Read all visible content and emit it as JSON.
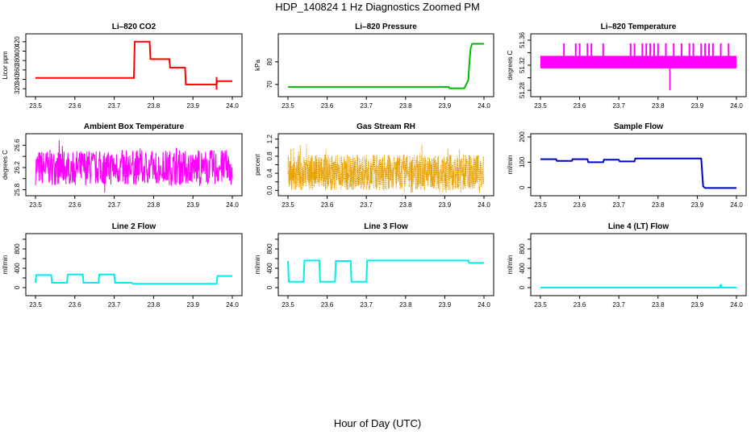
{
  "figure": {
    "title": "HDP_140824  1 Hz Diagnostics Zoomed PM",
    "xlabel": "Hour of Day (UTC)"
  },
  "chart_data": [
    {
      "type": "line",
      "title": "Li–820 CO2",
      "ylabel": "Licor ppm",
      "color": "#ff0000",
      "xlim": [
        23.5,
        24.0
      ],
      "ylim": [
        310,
        430
      ],
      "xticks": [
        "23.5",
        "23.6",
        "23.7",
        "23.8",
        "23.9",
        "24.0"
      ],
      "yticks": [
        320,
        340,
        360,
        380,
        400,
        420
      ],
      "series": [
        {
          "segments": [
            [
              23.5,
              343
            ],
            [
              23.75,
              343
            ],
            [
              23.752,
              420
            ],
            [
              23.79,
              420
            ],
            [
              23.792,
              383
            ],
            [
              23.84,
              383
            ],
            [
              23.842,
              365
            ],
            [
              23.88,
              365
            ],
            [
              23.882,
              329
            ],
            [
              23.96,
              329
            ],
            [
              23.962,
              336
            ],
            [
              24.0,
              336
            ]
          ]
        }
      ],
      "spikes": [
        [
          23.96,
          318,
          345
        ]
      ]
    },
    {
      "type": "line",
      "title": "Li–820 Pressure",
      "ylabel": "kPa",
      "color": "#00bb00",
      "xlim": [
        23.5,
        24.0
      ],
      "ylim": [
        66,
        91
      ],
      "xticks": [
        "23.5",
        "23.6",
        "23.7",
        "23.8",
        "23.9",
        "24.0"
      ],
      "yticks": [
        70,
        80
      ],
      "series": [
        {
          "segments": [
            [
              23.5,
              68.9
            ],
            [
              23.91,
              68.9
            ],
            [
              23.912,
              68.3
            ],
            [
              23.95,
              68.3
            ],
            [
              23.96,
              72
            ],
            [
              23.963,
              80
            ],
            [
              23.966,
              86
            ],
            [
              23.97,
              88
            ],
            [
              24.0,
              88
            ]
          ]
        }
      ]
    },
    {
      "type": "area",
      "title": "Li–820 Temperature",
      "ylabel": "degrees C",
      "color": "#ff00ff",
      "xlim": [
        23.5,
        24.0
      ],
      "ylim": [
        51.275,
        51.365
      ],
      "xticks": [
        "23.5",
        "23.6",
        "23.7",
        "23.8",
        "23.9",
        "24.0"
      ],
      "yticks": [
        "51.28",
        "51.32",
        "51.36"
      ],
      "yticks_minor": [
        "51.30",
        "51.34"
      ],
      "band": [
        51.315,
        51.335
      ],
      "spikes_up": [
        23.56,
        23.59,
        23.6,
        23.62,
        23.63,
        23.66,
        23.73,
        23.74,
        23.76,
        23.77,
        23.78,
        23.79,
        23.8,
        23.82,
        23.84,
        23.86,
        23.88,
        23.89,
        23.91,
        23.92,
        23.93,
        23.94,
        23.96,
        23.98
      ],
      "spike_top": 51.355,
      "spikes_down": [
        23.83
      ],
      "spike_bottom": 51.28
    },
    {
      "type": "line",
      "title": "Ambient Box Temperature",
      "ylabel": "degrees C",
      "color": "#ff00ff",
      "xlim": [
        23.5,
        24.0
      ],
      "ylim": [
        25.75,
        26.75
      ],
      "xticks": [
        "23.5",
        "23.6",
        "23.7",
        "23.8",
        "23.9",
        "24.0"
      ],
      "yticks": [
        "25.8",
        "26.2",
        "26.6"
      ],
      "yticks_minor": [
        "26.0",
        "26.4"
      ],
      "noise": {
        "center": 26.2,
        "amplitude": 0.32,
        "samples": 600
      }
    },
    {
      "type": "scatter",
      "title": "Gas Stream RH",
      "ylabel": "percent",
      "color": "#e8a000",
      "xlim": [
        23.5,
        24.0
      ],
      "ylim": [
        -0.05,
        1.25
      ],
      "xticks": [
        "23.5",
        "23.6",
        "23.7",
        "23.8",
        "23.9",
        "24.0"
      ],
      "yticks": [
        "0.0",
        "0.4",
        "0.8",
        "1.2"
      ],
      "yticks_minor": [
        "0.2",
        "0.6",
        "1.0"
      ],
      "noise": {
        "center": 0.42,
        "amplitude": 0.42,
        "samples": 1200
      }
    },
    {
      "type": "line",
      "title": "Sample Flow",
      "ylabel": "ml/min",
      "color": "#0000cc",
      "xlim": [
        23.5,
        24.0
      ],
      "ylim": [
        -20,
        200
      ],
      "xticks": [
        "23.5",
        "23.6",
        "23.7",
        "23.8",
        "23.9",
        "24.0"
      ],
      "yticks": [
        0,
        100,
        200
      ],
      "series": [
        {
          "segments": [
            [
              23.5,
              112
            ],
            [
              23.54,
              112
            ],
            [
              23.542,
              105
            ],
            [
              23.58,
              105
            ],
            [
              23.582,
              112
            ],
            [
              23.62,
              112
            ],
            [
              23.622,
              100
            ],
            [
              23.66,
              100
            ],
            [
              23.662,
              110
            ],
            [
              23.7,
              110
            ],
            [
              23.702,
              103
            ],
            [
              23.74,
              103
            ],
            [
              23.742,
              115
            ],
            [
              23.91,
              115
            ],
            [
              23.915,
              5
            ],
            [
              23.92,
              -2
            ],
            [
              24.0,
              -2
            ]
          ]
        }
      ]
    },
    {
      "type": "line",
      "title": "Line 2 Flow",
      "ylabel": "ml/min",
      "color": "#00eeee",
      "xlim": [
        23.5,
        24.0
      ],
      "ylim": [
        -100,
        1050
      ],
      "xticks": [
        "23.5",
        "23.6",
        "23.7",
        "23.8",
        "23.9",
        "24.0"
      ],
      "yticks": [
        0,
        400,
        800
      ],
      "yticks_minor": [
        200,
        600,
        1000
      ],
      "series": [
        {
          "segments": [
            [
              23.5,
              100
            ],
            [
              23.502,
              260
            ],
            [
              23.54,
              260
            ],
            [
              23.542,
              100
            ],
            [
              23.58,
              100
            ],
            [
              23.582,
              270
            ],
            [
              23.62,
              270
            ],
            [
              23.622,
              100
            ],
            [
              23.66,
              100
            ],
            [
              23.662,
              270
            ],
            [
              23.7,
              270
            ],
            [
              23.702,
              100
            ],
            [
              23.745,
              100
            ],
            [
              23.747,
              80
            ],
            [
              23.96,
              80
            ],
            [
              23.962,
              240
            ],
            [
              24.0,
              240
            ]
          ]
        }
      ]
    },
    {
      "type": "line",
      "title": "Line 3 Flow",
      "ylabel": "ml/min",
      "color": "#00eeee",
      "xlim": [
        23.5,
        24.0
      ],
      "ylim": [
        -100,
        1050
      ],
      "xticks": [
        "23.5",
        "23.6",
        "23.7",
        "23.8",
        "23.9",
        "24.0"
      ],
      "yticks": [
        0,
        400,
        800
      ],
      "yticks_minor": [
        200,
        600,
        1000
      ],
      "series": [
        {
          "segments": [
            [
              23.5,
              550
            ],
            [
              23.502,
              120
            ],
            [
              23.54,
              120
            ],
            [
              23.542,
              560
            ],
            [
              23.58,
              560
            ],
            [
              23.582,
              120
            ],
            [
              23.62,
              120
            ],
            [
              23.622,
              550
            ],
            [
              23.66,
              550
            ],
            [
              23.662,
              120
            ],
            [
              23.7,
              120
            ],
            [
              23.702,
              560
            ],
            [
              23.96,
              560
            ],
            [
              23.962,
              510
            ],
            [
              24.0,
              510
            ]
          ]
        }
      ]
    },
    {
      "type": "line",
      "title": "Line 4 (LT) Flow",
      "ylabel": "ml/min",
      "color": "#00eeee",
      "xlim": [
        23.5,
        24.0
      ],
      "ylim": [
        -100,
        1050
      ],
      "xticks": [
        "23.5",
        "23.6",
        "23.7",
        "23.8",
        "23.9",
        "24.0"
      ],
      "yticks": [
        0,
        400,
        800
      ],
      "yticks_minor": [
        200,
        600,
        1000
      ],
      "series": [
        {
          "segments": [
            [
              23.5,
              0
            ],
            [
              23.958,
              0
            ],
            [
              23.96,
              70
            ],
            [
              23.962,
              0
            ],
            [
              24.0,
              0
            ]
          ]
        }
      ]
    }
  ]
}
